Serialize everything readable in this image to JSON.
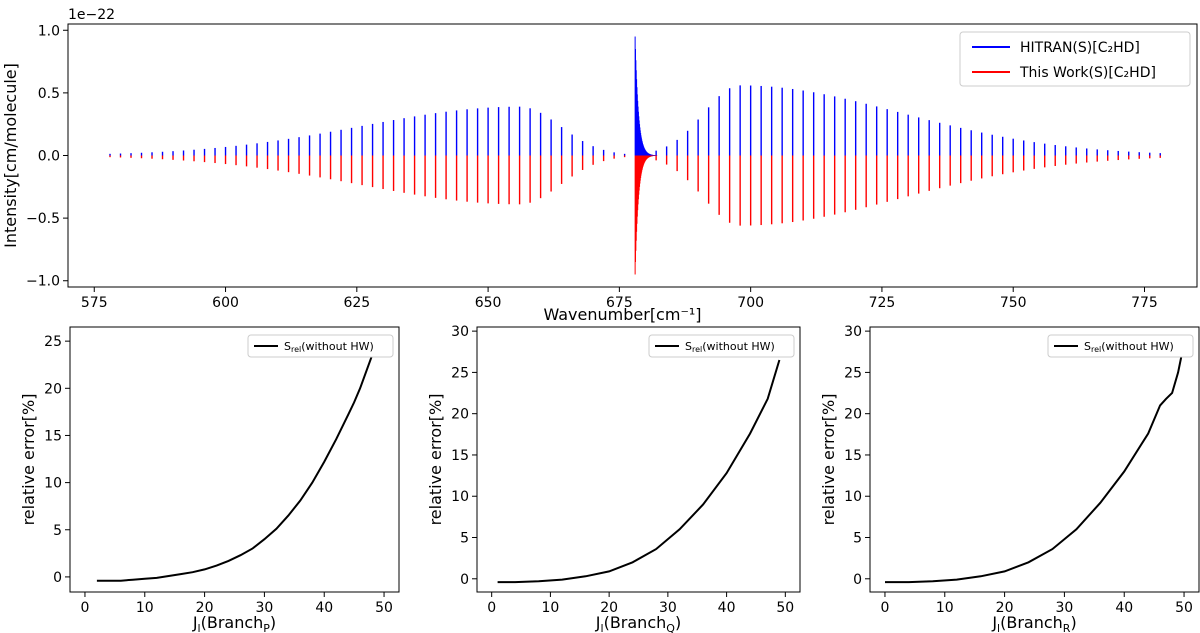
{
  "chart_data": [
    {
      "type": "line",
      "subtype": "stick-spectrum",
      "title": "",
      "xlabel": "Wavenumber[cm⁻¹]",
      "ylabel": "Intensity[cm/molecule]",
      "offset_text": "1e−22",
      "xlim": [
        570,
        785
      ],
      "ylim": [
        -1.05,
        1.05
      ],
      "x_ticks": [
        575,
        600,
        625,
        650,
        675,
        700,
        725,
        750,
        775
      ],
      "y_ticks": [
        -1.0,
        -0.5,
        0.0,
        0.5,
        1.0
      ],
      "x_tick_labels": [
        "575",
        "600",
        "625",
        "650",
        "675",
        "700",
        "725",
        "750",
        "775"
      ],
      "y_tick_labels": [
        "−1.0",
        "−0.5",
        "0.0",
        "0.5",
        "1.0"
      ],
      "legend_position": "top-right",
      "series": [
        {
          "name": "HITRAN(S)[C₂HD]",
          "color": "#0000ff",
          "sign": 1
        },
        {
          "name": "This Work(S)[C₂HD]",
          "color": "#ff0000",
          "sign": -1
        }
      ],
      "branches": {
        "q_branch_center": 678.0,
        "q_branch_peak": 0.95,
        "line_spacing": 2.0,
        "p_branch_range": [
          578,
          676
        ],
        "p_branch_peak": {
          "x": 656,
          "y": 0.39
        },
        "r_branch_range": [
          680,
          778
        ],
        "r_branch_peak": {
          "x": 698,
          "y": 0.56
        }
      }
    },
    {
      "type": "line",
      "xlabel": "Jₗ(Branchₚ)",
      "xlabel_main": "J",
      "xlabel_sub": "l",
      "xlabel_branch": "P",
      "ylabel": "relative error[%]",
      "legend_main": "S",
      "legend_sub": "rel",
      "legend_tail": "(without HW)",
      "legend_position": "top-right",
      "xlim": [
        -2.5,
        52.5
      ],
      "ylim": [
        -1.6,
        26.5
      ],
      "x_ticks": [
        0,
        10,
        20,
        30,
        40,
        50
      ],
      "y_ticks": [
        0,
        5,
        10,
        15,
        20,
        25
      ],
      "series": [
        {
          "name": "S_rel(without HW)",
          "color": "#000000",
          "x": [
            2,
            4,
            6,
            8,
            10,
            12,
            14,
            16,
            18,
            20,
            22,
            24,
            26,
            28,
            30,
            32,
            34,
            36,
            38,
            40,
            42,
            44,
            45,
            46,
            48
          ],
          "y": [
            -0.4,
            -0.4,
            -0.4,
            -0.3,
            -0.2,
            -0.1,
            0.1,
            0.3,
            0.5,
            0.8,
            1.2,
            1.7,
            2.3,
            3.0,
            4.0,
            5.1,
            6.5,
            8.1,
            10.0,
            12.2,
            14.6,
            17.2,
            18.5,
            20.0,
            23.5
          ]
        }
      ]
    },
    {
      "type": "line",
      "xlabel": "Jₗ(Branch_Q)",
      "xlabel_main": "J",
      "xlabel_sub": "l",
      "xlabel_branch": "Q",
      "ylabel": "relative error[%]",
      "legend_main": "S",
      "legend_sub": "rel",
      "legend_tail": "(without HW)",
      "legend_position": "top-right",
      "xlim": [
        -2.5,
        52.5
      ],
      "ylim": [
        -1.6,
        30.5
      ],
      "x_ticks": [
        0,
        10,
        20,
        30,
        40,
        50
      ],
      "y_ticks": [
        0,
        5,
        10,
        15,
        20,
        25,
        30
      ],
      "series": [
        {
          "name": "S_rel(without HW)",
          "color": "#000000",
          "x": [
            1,
            4,
            8,
            12,
            16,
            20,
            24,
            28,
            32,
            36,
            40,
            44,
            47,
            49
          ],
          "y": [
            -0.4,
            -0.4,
            -0.3,
            -0.1,
            0.3,
            0.9,
            2.0,
            3.6,
            6.0,
            9.0,
            12.8,
            17.6,
            21.8,
            26.5
          ]
        }
      ]
    },
    {
      "type": "line",
      "xlabel": "Jₗ(Branchᵣ)",
      "xlabel_main": "J",
      "xlabel_sub": "l",
      "xlabel_branch": "R",
      "ylabel": "relative error[%]",
      "legend_main": "S",
      "legend_sub": "rel",
      "legend_tail": "(without HW)",
      "legend_position": "top-right",
      "xlim": [
        -2.5,
        52.5
      ],
      "ylim": [
        -1.6,
        30.5
      ],
      "x_ticks": [
        0,
        10,
        20,
        30,
        40,
        50
      ],
      "y_ticks": [
        0,
        5,
        10,
        15,
        20,
        25,
        30
      ],
      "series": [
        {
          "name": "S_rel(without HW)",
          "color": "#000000",
          "x": [
            0,
            4,
            8,
            12,
            16,
            20,
            24,
            28,
            32,
            36,
            40,
            44,
            46,
            47,
            48,
            49,
            50
          ],
          "y": [
            -0.4,
            -0.4,
            -0.3,
            -0.1,
            0.3,
            0.9,
            2.0,
            3.6,
            6.0,
            9.2,
            13.0,
            17.6,
            21.0,
            21.8,
            22.5,
            25.0,
            28.5
          ]
        }
      ]
    }
  ]
}
